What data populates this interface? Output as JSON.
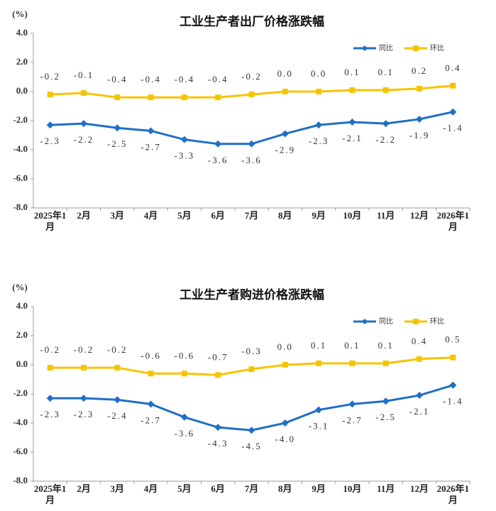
{
  "chart_data": [
    {
      "type": "line",
      "title": "工业生产者出厂价格涨跌幅",
      "ylabel": "(%)",
      "categories": [
        "2025年1月",
        "2月",
        "3月",
        "4月",
        "5月",
        "6月",
        "7月",
        "8月",
        "9月",
        "10月",
        "11月",
        "12月",
        "2026年1月"
      ],
      "series": [
        {
          "name": "同比",
          "color": "#1f6fc6",
          "marker": "diamond",
          "values": [
            -2.3,
            -2.2,
            -2.5,
            -2.7,
            -3.3,
            -3.6,
            -3.6,
            -2.9,
            -2.3,
            -2.1,
            -2.2,
            -1.9,
            -1.4
          ],
          "value_labels": [
            "-2.3",
            "-2.2",
            "-2.5",
            "-2.7",
            "-3.3",
            "-3.6",
            "-3.6",
            "-2.9",
            "-2.3",
            "-2.1",
            "-2.2",
            "-1.9",
            "-1.4"
          ]
        },
        {
          "name": "环比",
          "color": "#f5c400",
          "marker": "square",
          "values": [
            -0.2,
            -0.1,
            -0.4,
            -0.4,
            -0.4,
            -0.4,
            -0.2,
            0.0,
            0.0,
            0.1,
            0.1,
            0.2,
            0.4
          ],
          "value_labels": [
            "-0.2",
            "-0.1",
            "-0.4",
            "-0.4",
            "-0.4",
            "-0.4",
            "-0.2",
            "0.0",
            "0.0",
            "0.1",
            "0.1",
            "0.2",
            "0.4"
          ]
        }
      ],
      "ylim": [
        -8,
        4
      ],
      "yticks": [
        {
          "value": -8,
          "label": "-8.0"
        },
        {
          "value": -6,
          "label": "-6.0"
        },
        {
          "value": -4,
          "label": "-4.0"
        },
        {
          "value": -2,
          "label": "-2.0"
        },
        {
          "value": 0,
          "label": "0.0"
        },
        {
          "value": 2,
          "label": "2.0"
        },
        {
          "value": 4,
          "label": "4.0"
        }
      ],
      "legend": "upper right"
    },
    {
      "type": "line",
      "title": "工业生产者购进价格涨跌幅",
      "ylabel": "(%)",
      "categories": [
        "2025年1月",
        "2月",
        "3月",
        "4月",
        "5月",
        "6月",
        "7月",
        "8月",
        "9月",
        "10月",
        "11月",
        "12月",
        "2026年1月"
      ],
      "series": [
        {
          "name": "同比",
          "color": "#1f6fc6",
          "marker": "diamond",
          "values": [
            -2.3,
            -2.3,
            -2.4,
            -2.7,
            -3.6,
            -4.3,
            -4.5,
            -4.0,
            -3.1,
            -2.7,
            -2.5,
            -2.1,
            -1.4
          ],
          "value_labels": [
            "-2.3",
            "-2.3",
            "-2.4",
            "-2.7",
            "-3.6",
            "-4.3",
            "-4.5",
            "-4.0",
            "-3.1",
            "-2.7",
            "-2.5",
            "-2.1",
            "-1.4"
          ]
        },
        {
          "name": "环比",
          "color": "#f5c400",
          "marker": "square",
          "values": [
            -0.2,
            -0.2,
            -0.2,
            -0.6,
            -0.6,
            -0.7,
            -0.3,
            0.0,
            0.1,
            0.1,
            0.1,
            0.4,
            0.5
          ],
          "value_labels": [
            "-0.2",
            "-0.2",
            "-0.2",
            "-0.6",
            "-0.6",
            "-0.7",
            "-0.3",
            "0.0",
            "0.1",
            "0.1",
            "0.1",
            "0.4",
            "0.5"
          ]
        }
      ],
      "ylim": [
        -8,
        4
      ],
      "yticks": [
        {
          "value": -8,
          "label": "-8.0"
        },
        {
          "value": -6,
          "label": "-6.0"
        },
        {
          "value": -4,
          "label": "-4.0"
        },
        {
          "value": -2,
          "label": "-2.0"
        },
        {
          "value": 0,
          "label": "0.0"
        },
        {
          "value": 2,
          "label": "2.0"
        },
        {
          "value": 4,
          "label": "4.0"
        }
      ],
      "legend": "upper right"
    }
  ]
}
